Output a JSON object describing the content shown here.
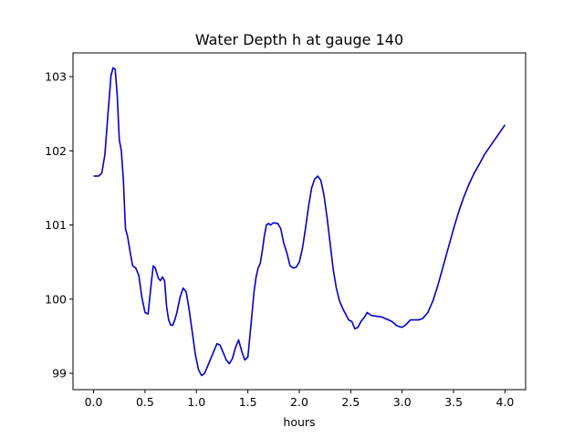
{
  "chart_data": {
    "type": "line",
    "title": "Water Depth h at gauge 140",
    "xlabel": "hours",
    "ylabel": "",
    "xlim": [
      -0.2,
      4.2
    ],
    "ylim": [
      98.78,
      103.32
    ],
    "xticks": [
      0.0,
      0.5,
      1.0,
      1.5,
      2.0,
      2.5,
      3.0,
      3.5,
      4.0
    ],
    "xtick_labels": [
      "0.0",
      "0.5",
      "1.0",
      "1.5",
      "2.0",
      "2.5",
      "3.0",
      "3.5",
      "4.0"
    ],
    "yticks": [
      99,
      100,
      101,
      102,
      103
    ],
    "ytick_labels": [
      "99",
      "100",
      "101",
      "102",
      "103"
    ],
    "grid": false,
    "series": [
      {
        "color": "#0000cc",
        "x": [
          0.0,
          0.05,
          0.08,
          0.11,
          0.14,
          0.17,
          0.19,
          0.21,
          0.23,
          0.25,
          0.27,
          0.29,
          0.31,
          0.33,
          0.36,
          0.38,
          0.41,
          0.44,
          0.47,
          0.5,
          0.53,
          0.56,
          0.58,
          0.6,
          0.63,
          0.65,
          0.67,
          0.69,
          0.71,
          0.73,
          0.75,
          0.77,
          0.79,
          0.81,
          0.84,
          0.87,
          0.9,
          0.93,
          0.96,
          0.99,
          1.02,
          1.05,
          1.08,
          1.11,
          1.14,
          1.17,
          1.2,
          1.23,
          1.26,
          1.29,
          1.32,
          1.35,
          1.38,
          1.41,
          1.44,
          1.47,
          1.5,
          1.53,
          1.56,
          1.58,
          1.6,
          1.62,
          1.64,
          1.66,
          1.68,
          1.7,
          1.72,
          1.75,
          1.79,
          1.82,
          1.85,
          1.88,
          1.91,
          1.94,
          1.97,
          2.0,
          2.03,
          2.06,
          2.09,
          2.12,
          2.15,
          2.18,
          2.21,
          2.24,
          2.27,
          2.3,
          2.33,
          2.36,
          2.39,
          2.42,
          2.45,
          2.48,
          2.51,
          2.54,
          2.57,
          2.6,
          2.63,
          2.66,
          2.7,
          2.75,
          2.8,
          2.85,
          2.9,
          2.95,
          3.0,
          3.04,
          3.08,
          3.12,
          3.16,
          3.2,
          3.25,
          3.3,
          3.35,
          3.4,
          3.45,
          3.5,
          3.55,
          3.6,
          3.65,
          3.7,
          3.75,
          3.8,
          3.85,
          3.9,
          3.95,
          4.0
        ],
        "y": [
          101.66,
          101.66,
          101.7,
          101.95,
          102.5,
          103.02,
          103.12,
          103.1,
          102.75,
          102.15,
          102.0,
          101.6,
          100.95,
          100.85,
          100.6,
          100.45,
          100.42,
          100.32,
          100.02,
          99.82,
          99.8,
          100.2,
          100.45,
          100.42,
          100.28,
          100.25,
          100.3,
          100.25,
          99.9,
          99.72,
          99.65,
          99.65,
          99.72,
          99.82,
          100.02,
          100.15,
          100.1,
          99.85,
          99.55,
          99.25,
          99.05,
          98.97,
          99.0,
          99.1,
          99.2,
          99.3,
          99.4,
          99.38,
          99.28,
          99.18,
          99.13,
          99.2,
          99.35,
          99.45,
          99.3,
          99.18,
          99.22,
          99.65,
          100.1,
          100.3,
          100.42,
          100.48,
          100.65,
          100.85,
          101.0,
          101.02,
          101.0,
          101.03,
          101.02,
          100.95,
          100.75,
          100.62,
          100.45,
          100.42,
          100.43,
          100.5,
          100.68,
          100.95,
          101.25,
          101.5,
          101.62,
          101.66,
          101.6,
          101.4,
          101.1,
          100.75,
          100.4,
          100.15,
          99.98,
          99.88,
          99.8,
          99.72,
          99.7,
          99.6,
          99.62,
          99.7,
          99.75,
          99.82,
          99.78,
          99.77,
          99.76,
          99.73,
          99.7,
          99.64,
          99.62,
          99.66,
          99.72,
          99.72,
          99.72,
          99.74,
          99.82,
          99.98,
          100.2,
          100.45,
          100.7,
          100.95,
          101.18,
          101.38,
          101.55,
          101.7,
          101.82,
          101.95,
          102.05,
          102.15,
          102.25,
          102.35
        ]
      }
    ]
  }
}
